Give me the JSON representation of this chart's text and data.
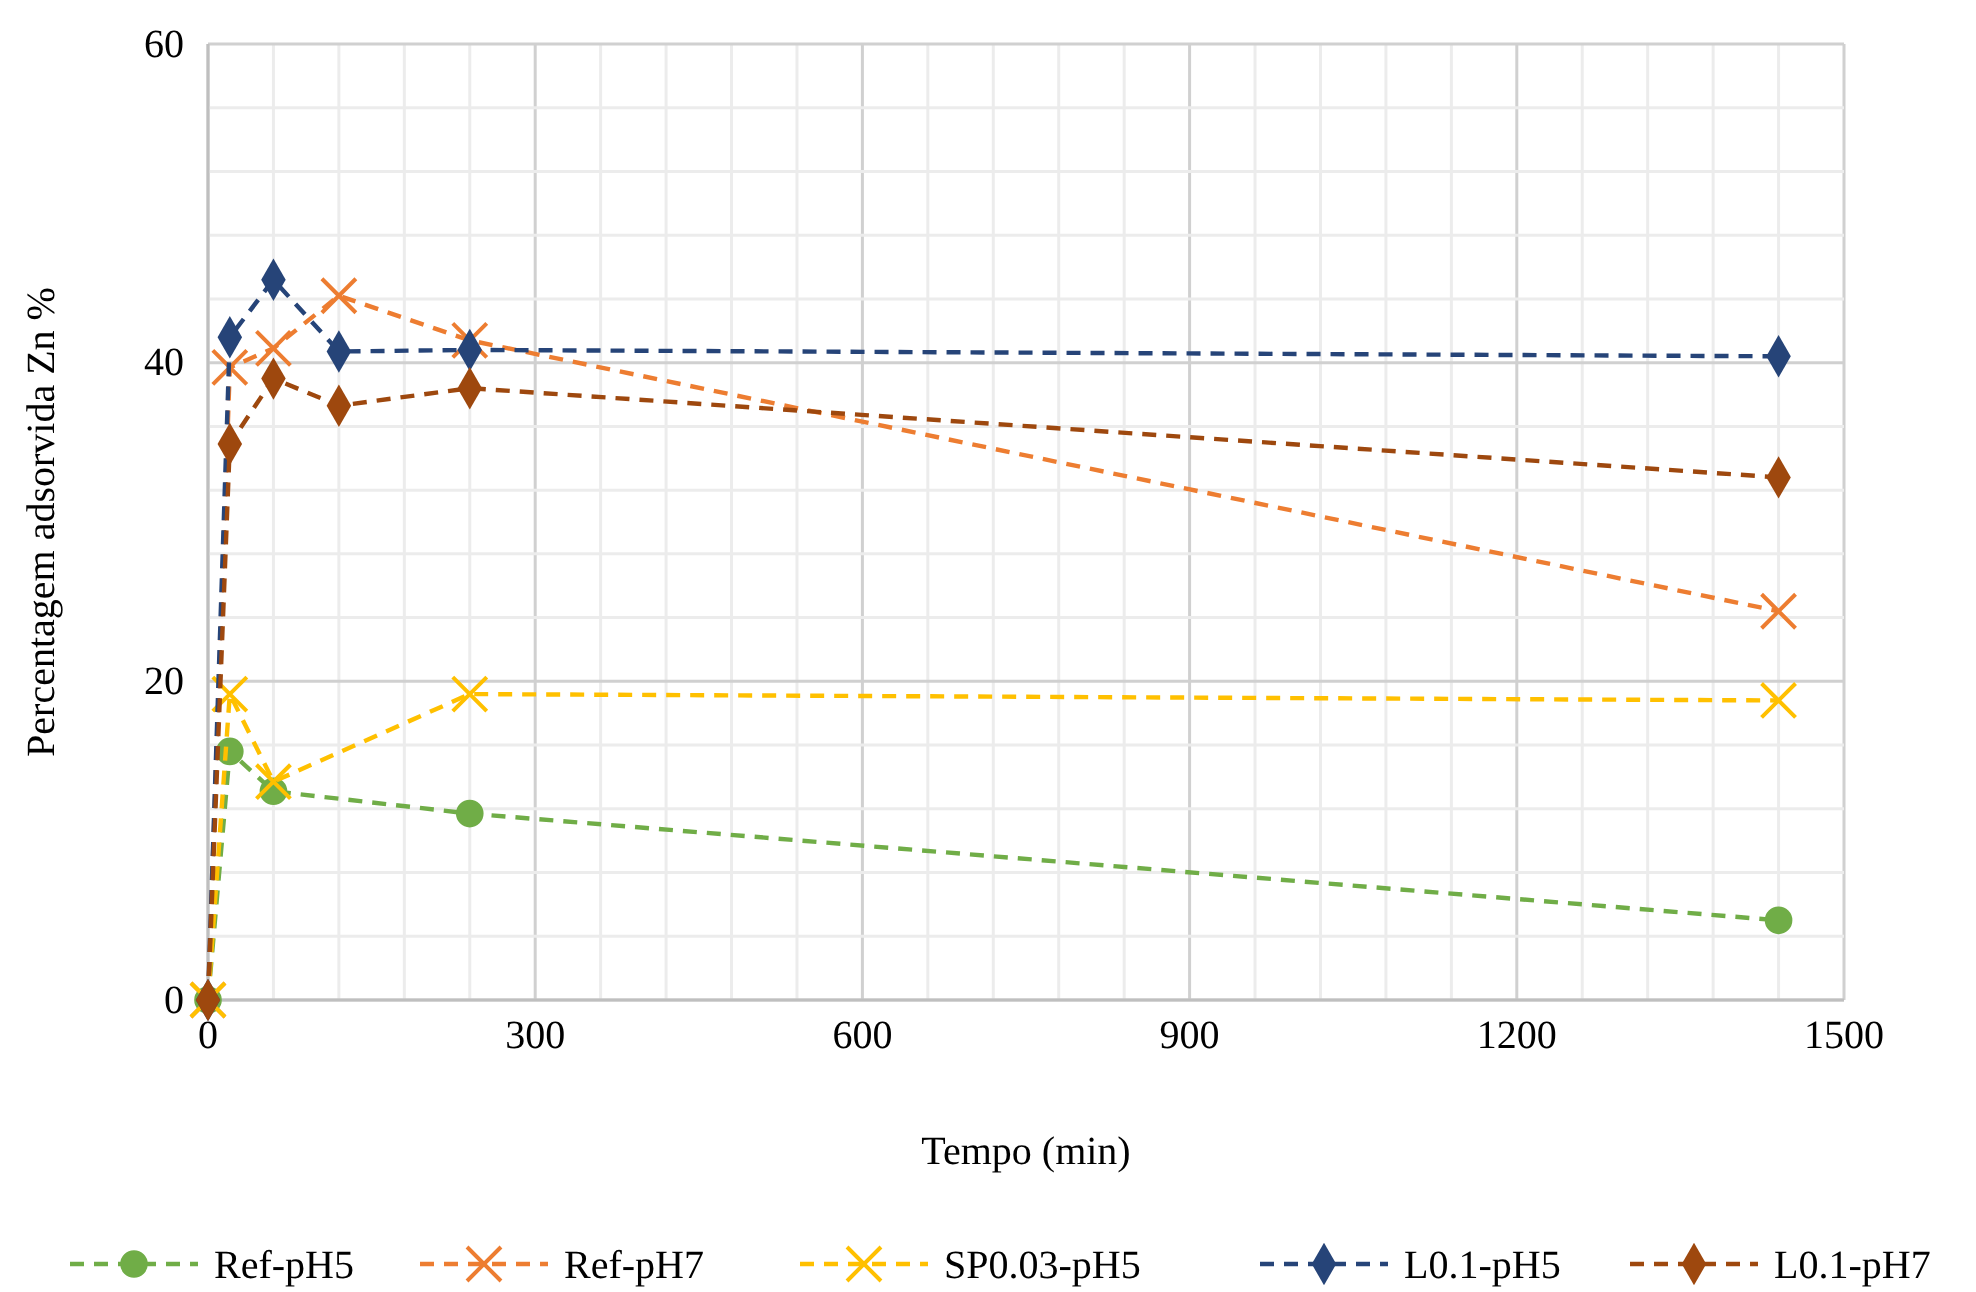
{
  "chart_data": {
    "type": "line",
    "xlabel": "Tempo (min)",
    "ylabel": "Percentagem adsorvida Zn %",
    "xlim": [
      0,
      1500
    ],
    "xticks": [
      0,
      {
        "value": 60,
        "label": null
      },
      {
        "value": 120,
        "label": null
      },
      {
        "value": 180,
        "label": null
      },
      {
        "value": 240,
        "label": null
      },
      300,
      {
        "value": 360,
        "label": null
      },
      {
        "value": 420,
        "label": null
      },
      {
        "value": 480,
        "label": null
      },
      {
        "value": 540,
        "label": null
      },
      600,
      {
        "value": 660,
        "label": null
      },
      {
        "value": 720,
        "label": null
      },
      {
        "value": 780,
        "label": null
      },
      {
        "value": 840,
        "label": null
      },
      900,
      {
        "value": 960,
        "label": null
      },
      {
        "value": 1020,
        "label": null
      },
      {
        "value": 1080,
        "label": null
      },
      {
        "value": 1140,
        "label": null
      },
      1200,
      {
        "value": 1260,
        "label": null
      },
      {
        "value": 1320,
        "label": null
      },
      {
        "value": 1380,
        "label": null
      },
      {
        "value": 1440,
        "label": null
      },
      1500
    ],
    "ylim": [
      0,
      60
    ],
    "yticks": [
      0,
      {
        "value": 4,
        "label": null
      },
      {
        "value": 8,
        "label": null
      },
      {
        "value": 12,
        "label": null
      },
      {
        "value": 16,
        "label": null
      },
      20,
      {
        "value": 24,
        "label": null
      },
      {
        "value": 28,
        "label": null
      },
      {
        "value": 32,
        "label": null
      },
      {
        "value": 36,
        "label": null
      },
      40,
      {
        "value": 44,
        "label": null
      },
      {
        "value": 48,
        "label": null
      },
      {
        "value": 52,
        "label": null
      },
      {
        "value": 56,
        "label": null
      },
      60
    ],
    "grid": true,
    "legend": "bottom",
    "line_style": "dashed",
    "series": [
      {
        "name": "Ref-pH5",
        "color": "#70ad47",
        "marker": "circle",
        "x": [
          0,
          20,
          60,
          240,
          1440
        ],
        "values": [
          0,
          15.6,
          13.1,
          11.7,
          5.0
        ]
      },
      {
        "name": "Ref-pH7",
        "color": "#ed7d31",
        "marker": "cross",
        "x": [
          0,
          20,
          60,
          120,
          240,
          1440
        ],
        "values": [
          0,
          39.7,
          40.9,
          44.2,
          41.4,
          24.4
        ]
      },
      {
        "name": "SP0.03-pH5",
        "color": "#ffc000",
        "marker": "cross",
        "x": [
          0,
          20,
          60,
          240,
          1440
        ],
        "values": [
          0,
          19.2,
          13.7,
          19.2,
          18.8
        ]
      },
      {
        "name": "L0.1-pH5",
        "color": "#264478",
        "marker": "diamond",
        "x": [
          0,
          20,
          60,
          120,
          240,
          1440
        ],
        "values": [
          0,
          41.6,
          45.2,
          40.7,
          40.8,
          40.4
        ]
      },
      {
        "name": "L0.1-pH7",
        "color": "#9e480e",
        "marker": "diamond",
        "x": [
          0,
          20,
          60,
          120,
          240,
          1440
        ],
        "values": [
          0,
          34.9,
          39.0,
          37.3,
          38.4,
          32.8
        ]
      }
    ]
  }
}
